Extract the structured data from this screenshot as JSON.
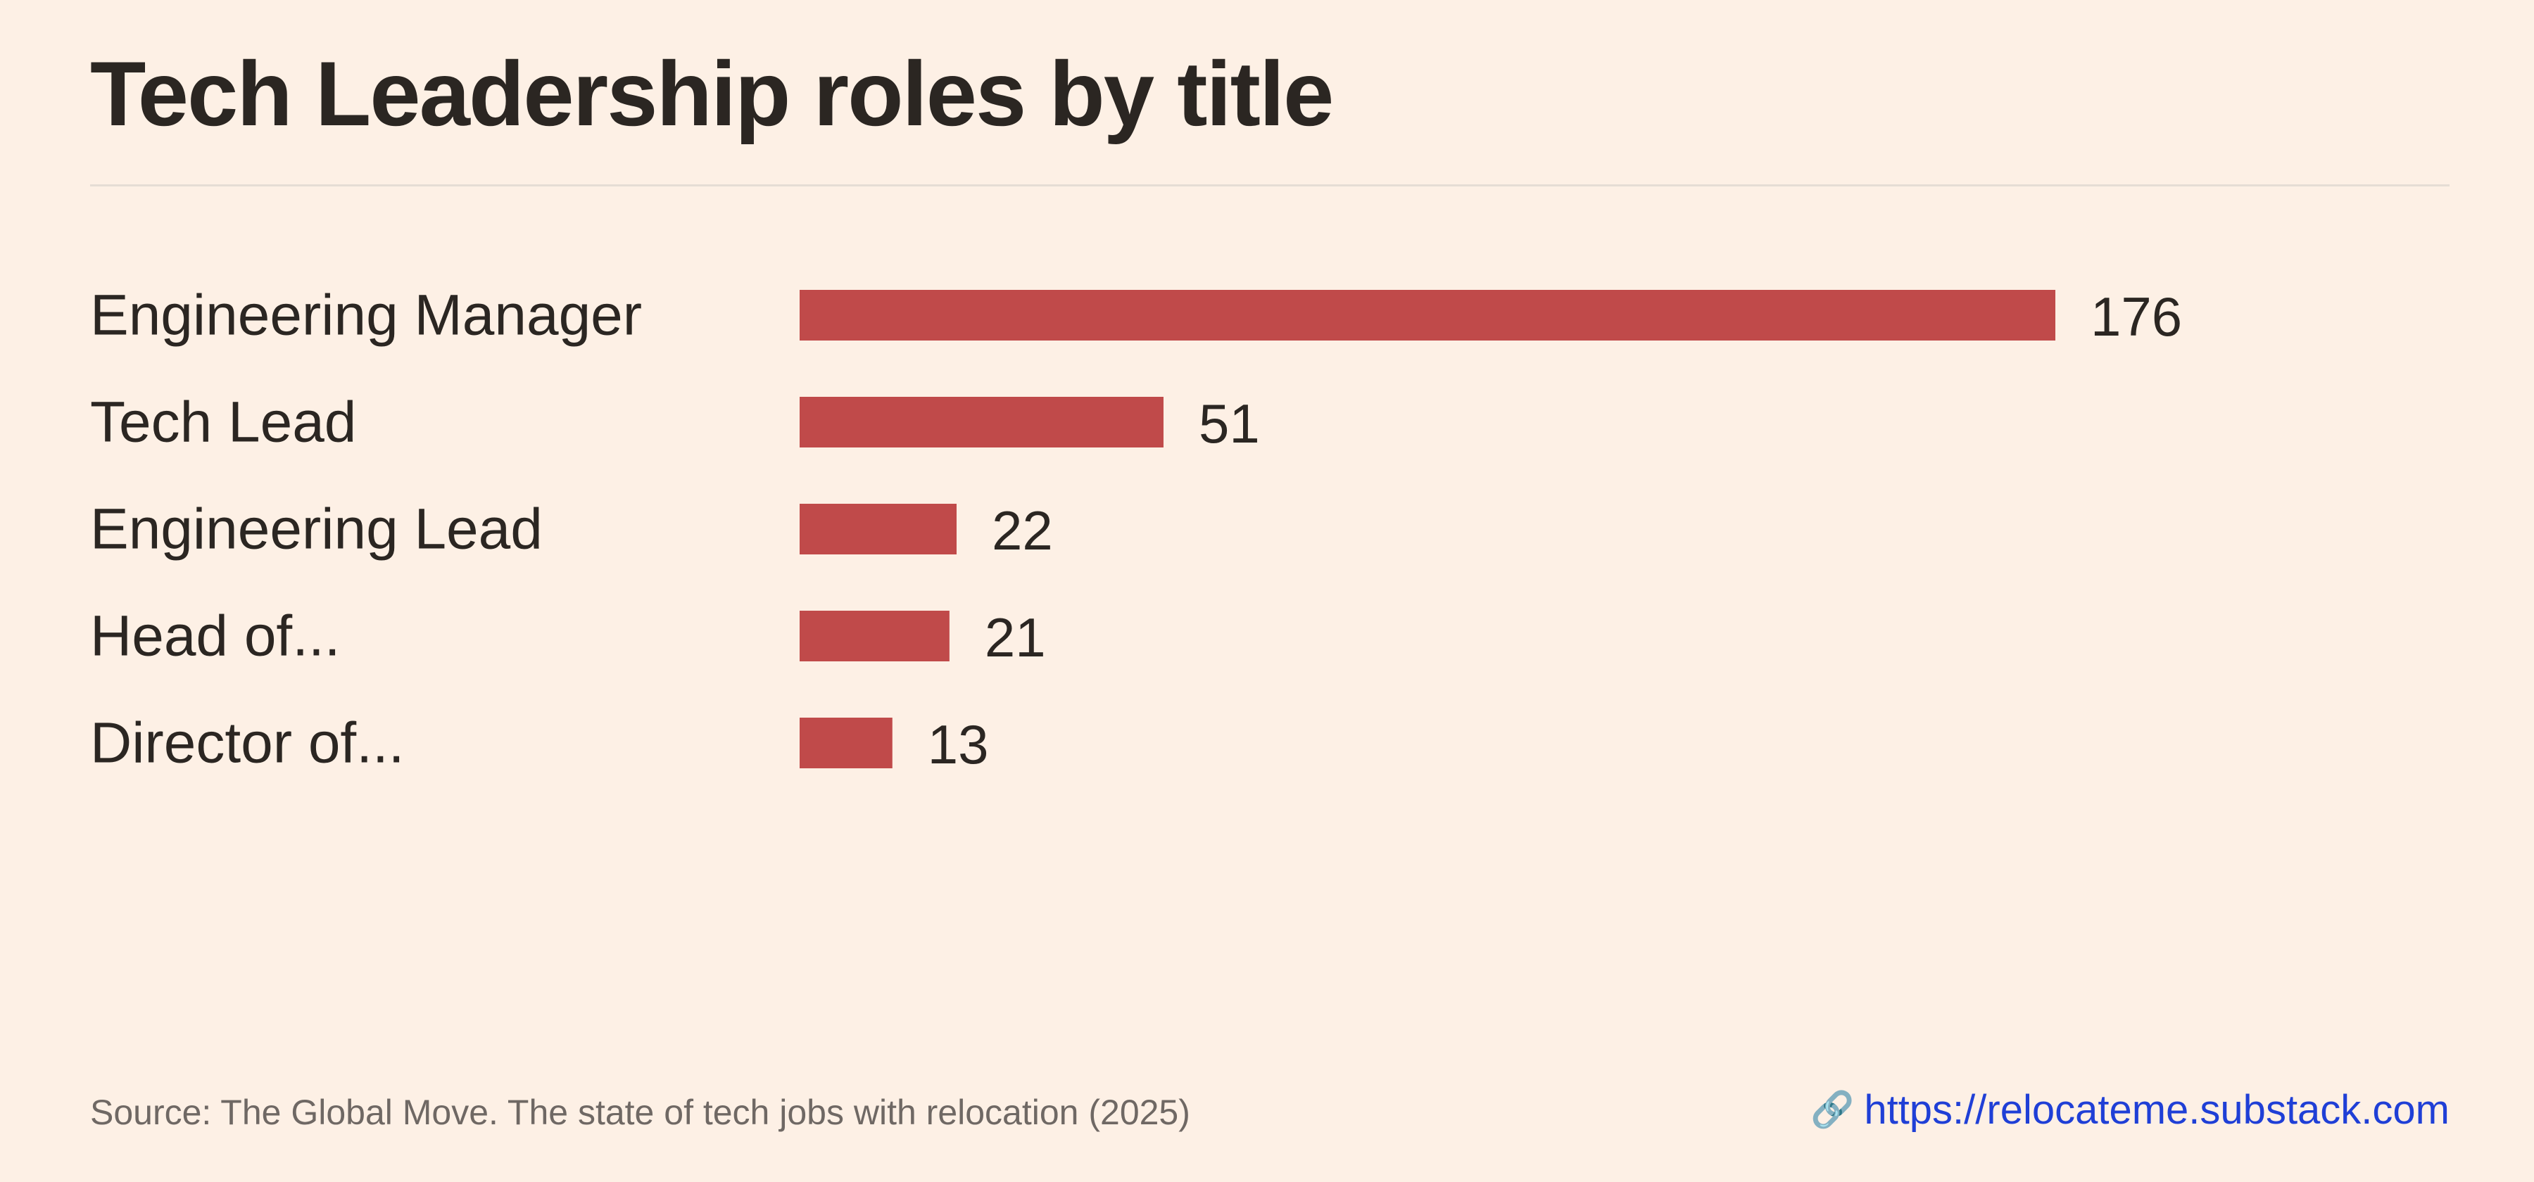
{
  "chart_data": {
    "type": "bar",
    "orientation": "horizontal",
    "title": "Tech Leadership roles by title",
    "categories": [
      "Engineering Manager",
      "Tech Lead",
      "Engineering Lead",
      "Head of...",
      "Director of..."
    ],
    "values": [
      176,
      51,
      22,
      21,
      13
    ],
    "xlabel": "",
    "ylabel": "",
    "xlim": [
      0,
      176
    ],
    "grid": false,
    "bar_color": "#c04a4a"
  },
  "footer": {
    "source": "Source: The Global Move. The state of tech jobs with relocation (2025)",
    "link_icon": "link-icon",
    "link_text": "https://relocateme.substack.com"
  }
}
